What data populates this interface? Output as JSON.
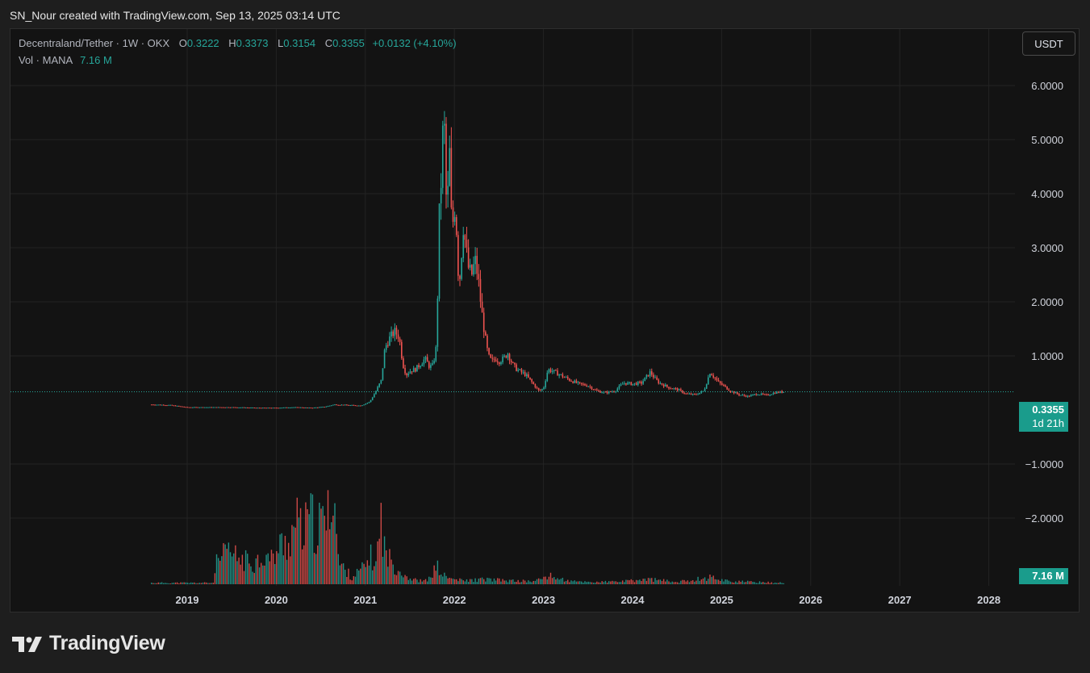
{
  "header": {
    "text": "SN_Nour created with TradingView.com, Sep 13, 2025 03:14 UTC"
  },
  "legend": {
    "symbol": "Decentraland/Tether · 1W · OKX",
    "open_label": "O",
    "open": "0.3222",
    "high_label": "H",
    "high": "0.3373",
    "low_label": "L",
    "low": "0.3154",
    "close_label": "C",
    "close": "0.3355",
    "change": "+0.0132 (+4.10%)",
    "vol_label": "Vol · MANA",
    "vol": "7.16 M"
  },
  "currency_button": "USDT",
  "price_tag": {
    "price": "0.3355",
    "countdown": "1d 21h"
  },
  "volume_tag": "7.16 M",
  "footer": {
    "brand": "TradingView"
  },
  "colors": {
    "up": "#26a69a",
    "down": "#ef5350",
    "background": "#131313",
    "grid": "#232323"
  },
  "chart_data": {
    "type": "candlestick",
    "title": "Decentraland/Tether · 1W · OKX",
    "x_axis": {
      "ticks": [
        "2019",
        "2020",
        "2021",
        "2022",
        "2023",
        "2024",
        "2025",
        "2026",
        "2027",
        "2028"
      ]
    },
    "y_axis": {
      "ticks": [
        6,
        5,
        4,
        3,
        2,
        1,
        -1,
        -2
      ],
      "tick_labels": [
        "6.0000",
        "5.0000",
        "4.0000",
        "3.0000",
        "2.0000",
        "1.0000",
        "−1.0000",
        "−2.0000"
      ],
      "range": [
        -2.6,
        7.1
      ]
    },
    "current_price": 0.3355,
    "grid": true,
    "price_series": [
      {
        "t": 2018.6,
        "p": 0.1
      },
      {
        "t": 2018.8,
        "p": 0.09
      },
      {
        "t": 2019.0,
        "p": 0.05
      },
      {
        "t": 2019.3,
        "p": 0.05
      },
      {
        "t": 2019.5,
        "p": 0.05
      },
      {
        "t": 2019.8,
        "p": 0.04
      },
      {
        "t": 2020.0,
        "p": 0.04
      },
      {
        "t": 2020.2,
        "p": 0.05
      },
      {
        "t": 2020.4,
        "p": 0.04
      },
      {
        "t": 2020.55,
        "p": 0.06
      },
      {
        "t": 2020.65,
        "p": 0.1
      },
      {
        "t": 2020.8,
        "p": 0.09
      },
      {
        "t": 2020.95,
        "p": 0.08
      },
      {
        "t": 2021.05,
        "p": 0.15
      },
      {
        "t": 2021.12,
        "p": 0.35
      },
      {
        "t": 2021.18,
        "p": 0.55
      },
      {
        "t": 2021.22,
        "p": 1.15
      },
      {
        "t": 2021.28,
        "p": 1.35
      },
      {
        "t": 2021.33,
        "p": 1.45
      },
      {
        "t": 2021.38,
        "p": 1.35
      },
      {
        "t": 2021.42,
        "p": 0.85
      },
      {
        "t": 2021.46,
        "p": 0.65
      },
      {
        "t": 2021.5,
        "p": 0.72
      },
      {
        "t": 2021.56,
        "p": 0.75
      },
      {
        "t": 2021.62,
        "p": 0.85
      },
      {
        "t": 2021.67,
        "p": 0.95
      },
      {
        "t": 2021.72,
        "p": 0.8
      },
      {
        "t": 2021.76,
        "p": 0.82
      },
      {
        "t": 2021.8,
        "p": 1.2
      },
      {
        "t": 2021.83,
        "p": 3.6
      },
      {
        "t": 2021.86,
        "p": 4.5
      },
      {
        "t": 2021.88,
        "p": 5.8
      },
      {
        "t": 2021.9,
        "p": 4.3
      },
      {
        "t": 2021.92,
        "p": 3.4
      },
      {
        "t": 2021.94,
        "p": 5.2
      },
      {
        "t": 2021.96,
        "p": 3.7
      },
      {
        "t": 2021.98,
        "p": 3.4
      },
      {
        "t": 2022.0,
        "p": 3.8
      },
      {
        "t": 2022.03,
        "p": 3.2
      },
      {
        "t": 2022.05,
        "p": 2.2
      },
      {
        "t": 2022.08,
        "p": 2.9
      },
      {
        "t": 2022.1,
        "p": 3.4
      },
      {
        "t": 2022.13,
        "p": 3.0
      },
      {
        "t": 2022.16,
        "p": 2.6
      },
      {
        "t": 2022.2,
        "p": 2.5
      },
      {
        "t": 2022.23,
        "p": 2.8
      },
      {
        "t": 2022.27,
        "p": 2.4
      },
      {
        "t": 2022.3,
        "p": 1.9
      },
      {
        "t": 2022.34,
        "p": 1.4
      },
      {
        "t": 2022.38,
        "p": 1.0
      },
      {
        "t": 2022.42,
        "p": 0.9
      },
      {
        "t": 2022.46,
        "p": 0.95
      },
      {
        "t": 2022.5,
        "p": 0.9
      },
      {
        "t": 2022.55,
        "p": 0.95
      },
      {
        "t": 2022.6,
        "p": 1.05
      },
      {
        "t": 2022.65,
        "p": 0.85
      },
      {
        "t": 2022.7,
        "p": 0.75
      },
      {
        "t": 2022.75,
        "p": 0.7
      },
      {
        "t": 2022.8,
        "p": 0.65
      },
      {
        "t": 2022.85,
        "p": 0.55
      },
      {
        "t": 2022.9,
        "p": 0.45
      },
      {
        "t": 2022.95,
        "p": 0.35
      },
      {
        "t": 2023.0,
        "p": 0.4
      },
      {
        "t": 2023.05,
        "p": 0.75
      },
      {
        "t": 2023.1,
        "p": 0.72
      },
      {
        "t": 2023.15,
        "p": 0.68
      },
      {
        "t": 2023.22,
        "p": 0.62
      },
      {
        "t": 2023.3,
        "p": 0.55
      },
      {
        "t": 2023.4,
        "p": 0.48
      },
      {
        "t": 2023.5,
        "p": 0.45
      },
      {
        "t": 2023.6,
        "p": 0.35
      },
      {
        "t": 2023.7,
        "p": 0.32
      },
      {
        "t": 2023.8,
        "p": 0.35
      },
      {
        "t": 2023.9,
        "p": 0.5
      },
      {
        "t": 2024.0,
        "p": 0.48
      },
      {
        "t": 2024.1,
        "p": 0.5
      },
      {
        "t": 2024.2,
        "p": 0.7
      },
      {
        "t": 2024.25,
        "p": 0.58
      },
      {
        "t": 2024.3,
        "p": 0.5
      },
      {
        "t": 2024.4,
        "p": 0.42
      },
      {
        "t": 2024.5,
        "p": 0.38
      },
      {
        "t": 2024.6,
        "p": 0.3
      },
      {
        "t": 2024.7,
        "p": 0.28
      },
      {
        "t": 2024.8,
        "p": 0.35
      },
      {
        "t": 2024.87,
        "p": 0.7
      },
      {
        "t": 2024.92,
        "p": 0.6
      },
      {
        "t": 2024.97,
        "p": 0.5
      },
      {
        "t": 2025.02,
        "p": 0.45
      },
      {
        "t": 2025.1,
        "p": 0.35
      },
      {
        "t": 2025.2,
        "p": 0.28
      },
      {
        "t": 2025.3,
        "p": 0.25
      },
      {
        "t": 2025.4,
        "p": 0.3
      },
      {
        "t": 2025.5,
        "p": 0.27
      },
      {
        "t": 2025.6,
        "p": 0.32
      },
      {
        "t": 2025.7,
        "p": 0.3355
      }
    ],
    "volume_series": [
      {
        "t": 2019.3,
        "v": 25
      },
      {
        "t": 2019.45,
        "v": 45
      },
      {
        "t": 2019.6,
        "v": 35
      },
      {
        "t": 2019.75,
        "v": 30
      },
      {
        "t": 2019.85,
        "v": 40
      },
      {
        "t": 2019.95,
        "v": 35
      },
      {
        "t": 2020.05,
        "v": 55
      },
      {
        "t": 2020.15,
        "v": 60
      },
      {
        "t": 2020.22,
        "v": 90
      },
      {
        "t": 2020.3,
        "v": 70
      },
      {
        "t": 2020.38,
        "v": 95
      },
      {
        "t": 2020.45,
        "v": 75
      },
      {
        "t": 2020.52,
        "v": 90
      },
      {
        "t": 2020.6,
        "v": 95
      },
      {
        "t": 2020.63,
        "v": 170
      },
      {
        "t": 2020.7,
        "v": 30
      },
      {
        "t": 2020.85,
        "v": 10
      },
      {
        "t": 2021.0,
        "v": 25
      },
      {
        "t": 2021.05,
        "v": 40
      },
      {
        "t": 2021.12,
        "v": 28
      },
      {
        "t": 2021.18,
        "v": 95
      },
      {
        "t": 2021.22,
        "v": 45
      },
      {
        "t": 2021.3,
        "v": 30
      },
      {
        "t": 2021.4,
        "v": 18
      },
      {
        "t": 2021.5,
        "v": 8
      },
      {
        "t": 2021.6,
        "v": 5
      },
      {
        "t": 2021.7,
        "v": 5
      },
      {
        "t": 2021.8,
        "v": 25
      },
      {
        "t": 2021.88,
        "v": 12
      },
      {
        "t": 2021.95,
        "v": 8
      },
      {
        "t": 2022.1,
        "v": 5
      },
      {
        "t": 2022.35,
        "v": 7
      },
      {
        "t": 2022.6,
        "v": 5
      },
      {
        "t": 2022.9,
        "v": 4
      },
      {
        "t": 2023.05,
        "v": 12
      },
      {
        "t": 2023.3,
        "v": 4
      },
      {
        "t": 2023.6,
        "v": 3
      },
      {
        "t": 2023.9,
        "v": 4
      },
      {
        "t": 2024.2,
        "v": 7
      },
      {
        "t": 2024.5,
        "v": 3
      },
      {
        "t": 2024.88,
        "v": 10
      },
      {
        "t": 2025.1,
        "v": 4
      },
      {
        "t": 2025.4,
        "v": 3
      },
      {
        "t": 2025.7,
        "v": 2
      }
    ]
  }
}
